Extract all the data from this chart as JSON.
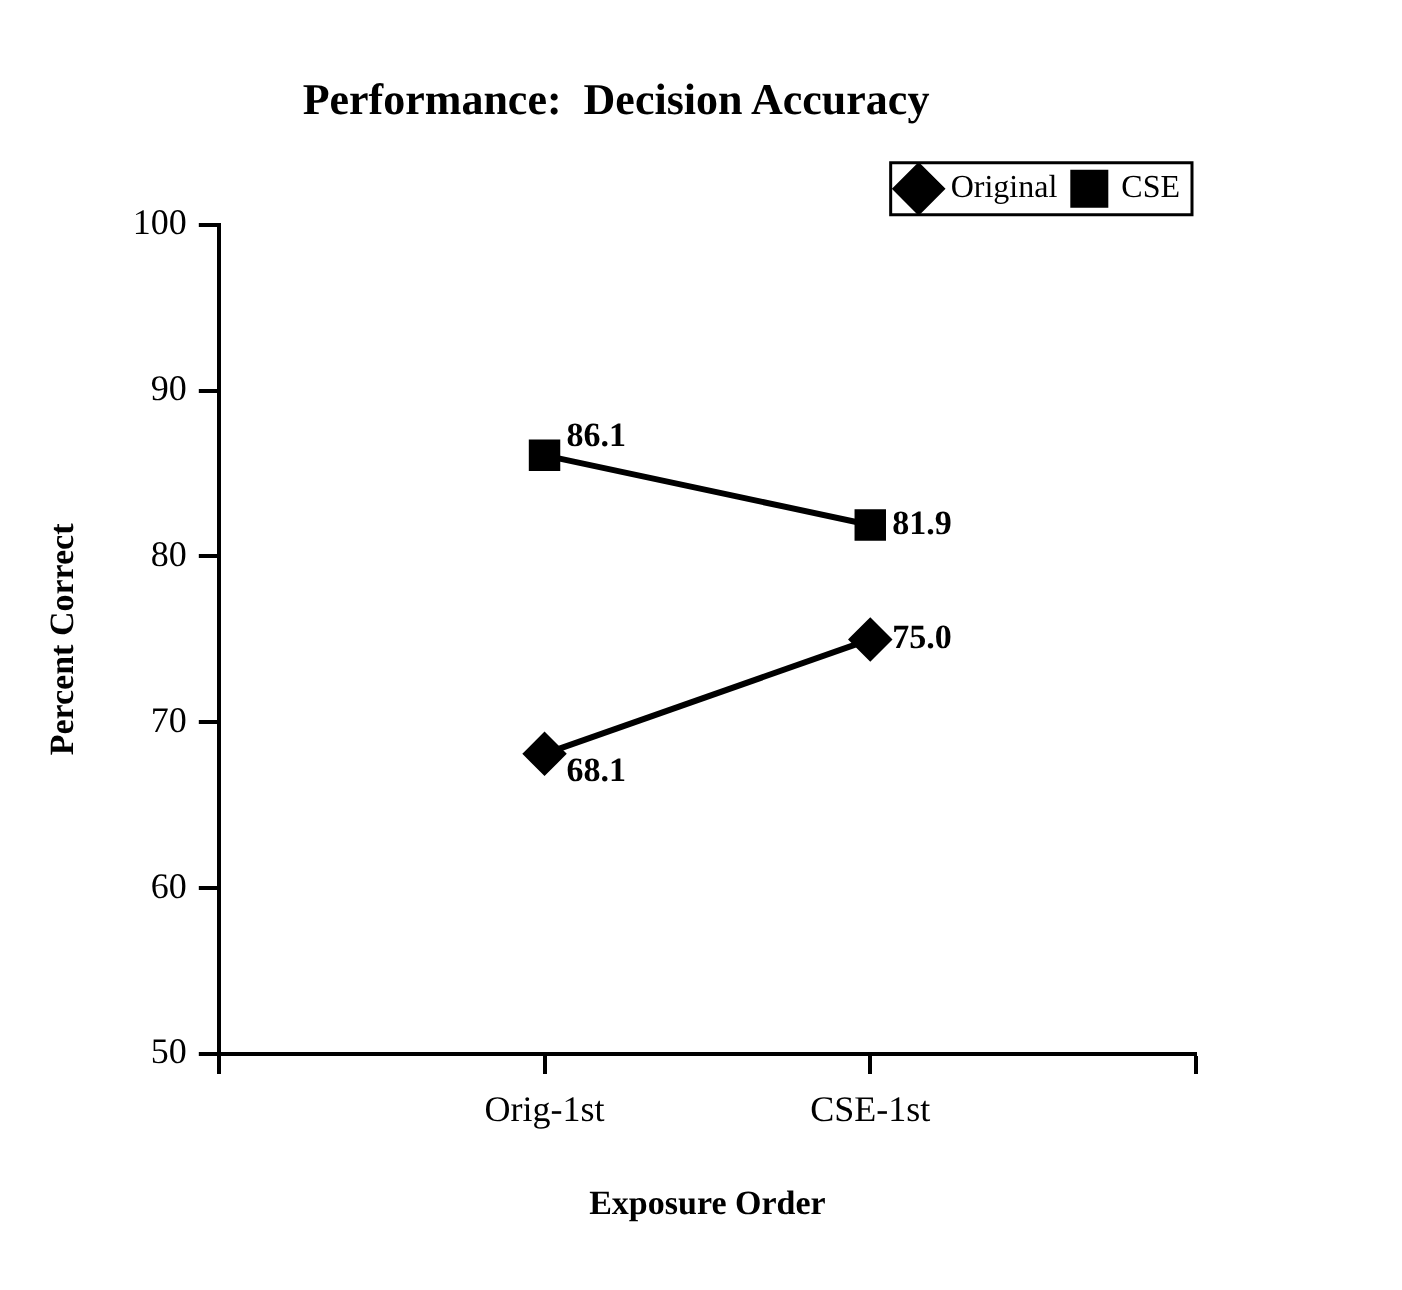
{
  "chart_data": {
    "type": "line",
    "title": "Performance:  Decision Accuracy",
    "xlabel": "Exposure Order",
    "ylabel": "Percent Correct",
    "categories": [
      "Orig-1st",
      "CSE-1st"
    ],
    "series": [
      {
        "name": "Original",
        "color": "#000000",
        "marker": "diamond",
        "values": [
          68.1,
          75.0
        ],
        "value_labels": [
          "68.1",
          "75.0"
        ]
      },
      {
        "name": "CSE",
        "color": "#000000",
        "marker": "square",
        "values": [
          86.1,
          81.9
        ],
        "value_labels": [
          "86.1",
          "81.9"
        ]
      }
    ],
    "ylim": [
      50,
      100
    ],
    "yticks": [
      50,
      60,
      70,
      80,
      90,
      100
    ],
    "grid": false,
    "legend": "top right"
  }
}
